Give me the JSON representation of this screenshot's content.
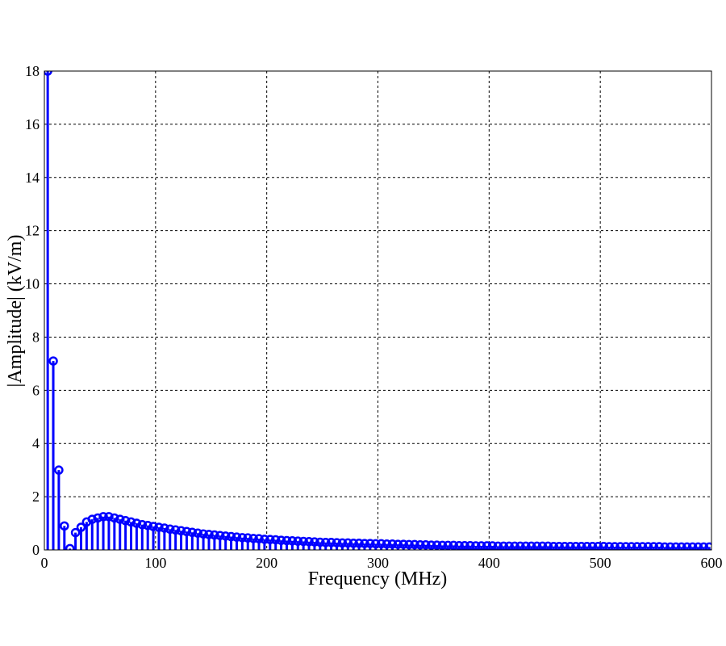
{
  "chart_data": {
    "type": "stem",
    "xlabel": "Frequency (MHz)",
    "ylabel": "|Amplitude| (kV/m)",
    "xlim": [
      0,
      600
    ],
    "ylim": [
      0,
      18
    ],
    "xticks": [
      0,
      100,
      200,
      300,
      400,
      500,
      600
    ],
    "yticks": [
      0,
      2,
      4,
      6,
      8,
      10,
      12,
      14,
      16,
      18
    ],
    "grid": true,
    "color": "#0000ff",
    "x": [
      3,
      8,
      13,
      18,
      23,
      28,
      33,
      38,
      43,
      48,
      53,
      58,
      63,
      68,
      73,
      78,
      83,
      88,
      93,
      98,
      103,
      108,
      113,
      118,
      123,
      128,
      133,
      138,
      143,
      148,
      153,
      158,
      163,
      168,
      173,
      178,
      183,
      188,
      193,
      198,
      203,
      208,
      213,
      218,
      223,
      228,
      233,
      238,
      243,
      248,
      253,
      258,
      263,
      268,
      273,
      278,
      283,
      288,
      293,
      298,
      303,
      308,
      313,
      318,
      323,
      328,
      333,
      338,
      343,
      348,
      353,
      358,
      363,
      368,
      373,
      378,
      383,
      388,
      393,
      398,
      403,
      408,
      413,
      418,
      423,
      428,
      433,
      438,
      443,
      448,
      453,
      458,
      463,
      468,
      473,
      478,
      483,
      488,
      493,
      498,
      503,
      508,
      513,
      518,
      523,
      528,
      533,
      538,
      543,
      548,
      553,
      558,
      563,
      568,
      573,
      578,
      583,
      588,
      593,
      598
    ],
    "values": [
      18,
      7.1,
      3.0,
      0.9,
      0.05,
      0.65,
      0.85,
      1.05,
      1.15,
      1.2,
      1.25,
      1.25,
      1.2,
      1.15,
      1.1,
      1.05,
      1.0,
      0.95,
      0.92,
      0.88,
      0.85,
      0.82,
      0.78,
      0.75,
      0.72,
      0.69,
      0.66,
      0.63,
      0.6,
      0.58,
      0.56,
      0.54,
      0.52,
      0.5,
      0.48,
      0.46,
      0.45,
      0.43,
      0.42,
      0.4,
      0.39,
      0.38,
      0.36,
      0.35,
      0.34,
      0.33,
      0.32,
      0.31,
      0.3,
      0.29,
      0.28,
      0.28,
      0.27,
      0.26,
      0.26,
      0.25,
      0.25,
      0.24,
      0.24,
      0.23,
      0.23,
      0.22,
      0.22,
      0.21,
      0.21,
      0.2,
      0.2,
      0.19,
      0.19,
      0.18,
      0.18,
      0.17,
      0.17,
      0.17,
      0.16,
      0.16,
      0.16,
      0.15,
      0.15,
      0.15,
      0.15,
      0.14,
      0.14,
      0.14,
      0.14,
      0.14,
      0.14,
      0.14,
      0.14,
      0.14,
      0.14,
      0.13,
      0.13,
      0.13,
      0.13,
      0.13,
      0.13,
      0.13,
      0.13,
      0.13,
      0.13,
      0.12,
      0.12,
      0.12,
      0.12,
      0.12,
      0.12,
      0.12,
      0.12,
      0.12,
      0.12,
      0.11,
      0.11,
      0.11,
      0.11,
      0.11,
      0.11,
      0.11,
      0.11,
      0.11
    ]
  }
}
